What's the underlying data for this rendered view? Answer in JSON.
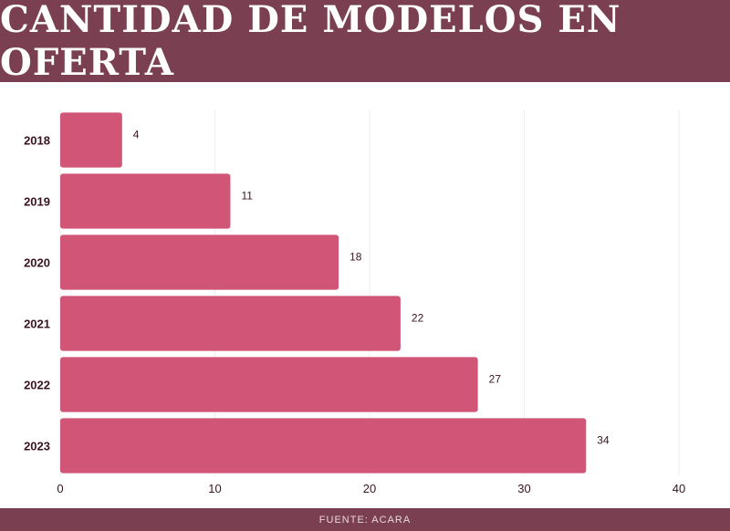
{
  "header": {
    "title": "CANTIDAD DE MODELOS EN OFERTA"
  },
  "footer": {
    "source": "FUENTE: ACARA"
  },
  "colors": {
    "banner": "#7a4052",
    "bar": "#d05577",
    "grid": "#eeeeee"
  },
  "chart_data": {
    "type": "bar",
    "orientation": "horizontal",
    "title": "CANTIDAD DE MODELOS EN OFERTA",
    "categories": [
      "2018",
      "2019",
      "2020",
      "2021",
      "2022",
      "2023"
    ],
    "values": [
      4,
      11,
      18,
      22,
      27,
      34
    ],
    "xlim": [
      0,
      40
    ],
    "xticks": [
      0,
      10,
      20,
      30,
      40
    ],
    "grid": true,
    "legend": "none"
  }
}
